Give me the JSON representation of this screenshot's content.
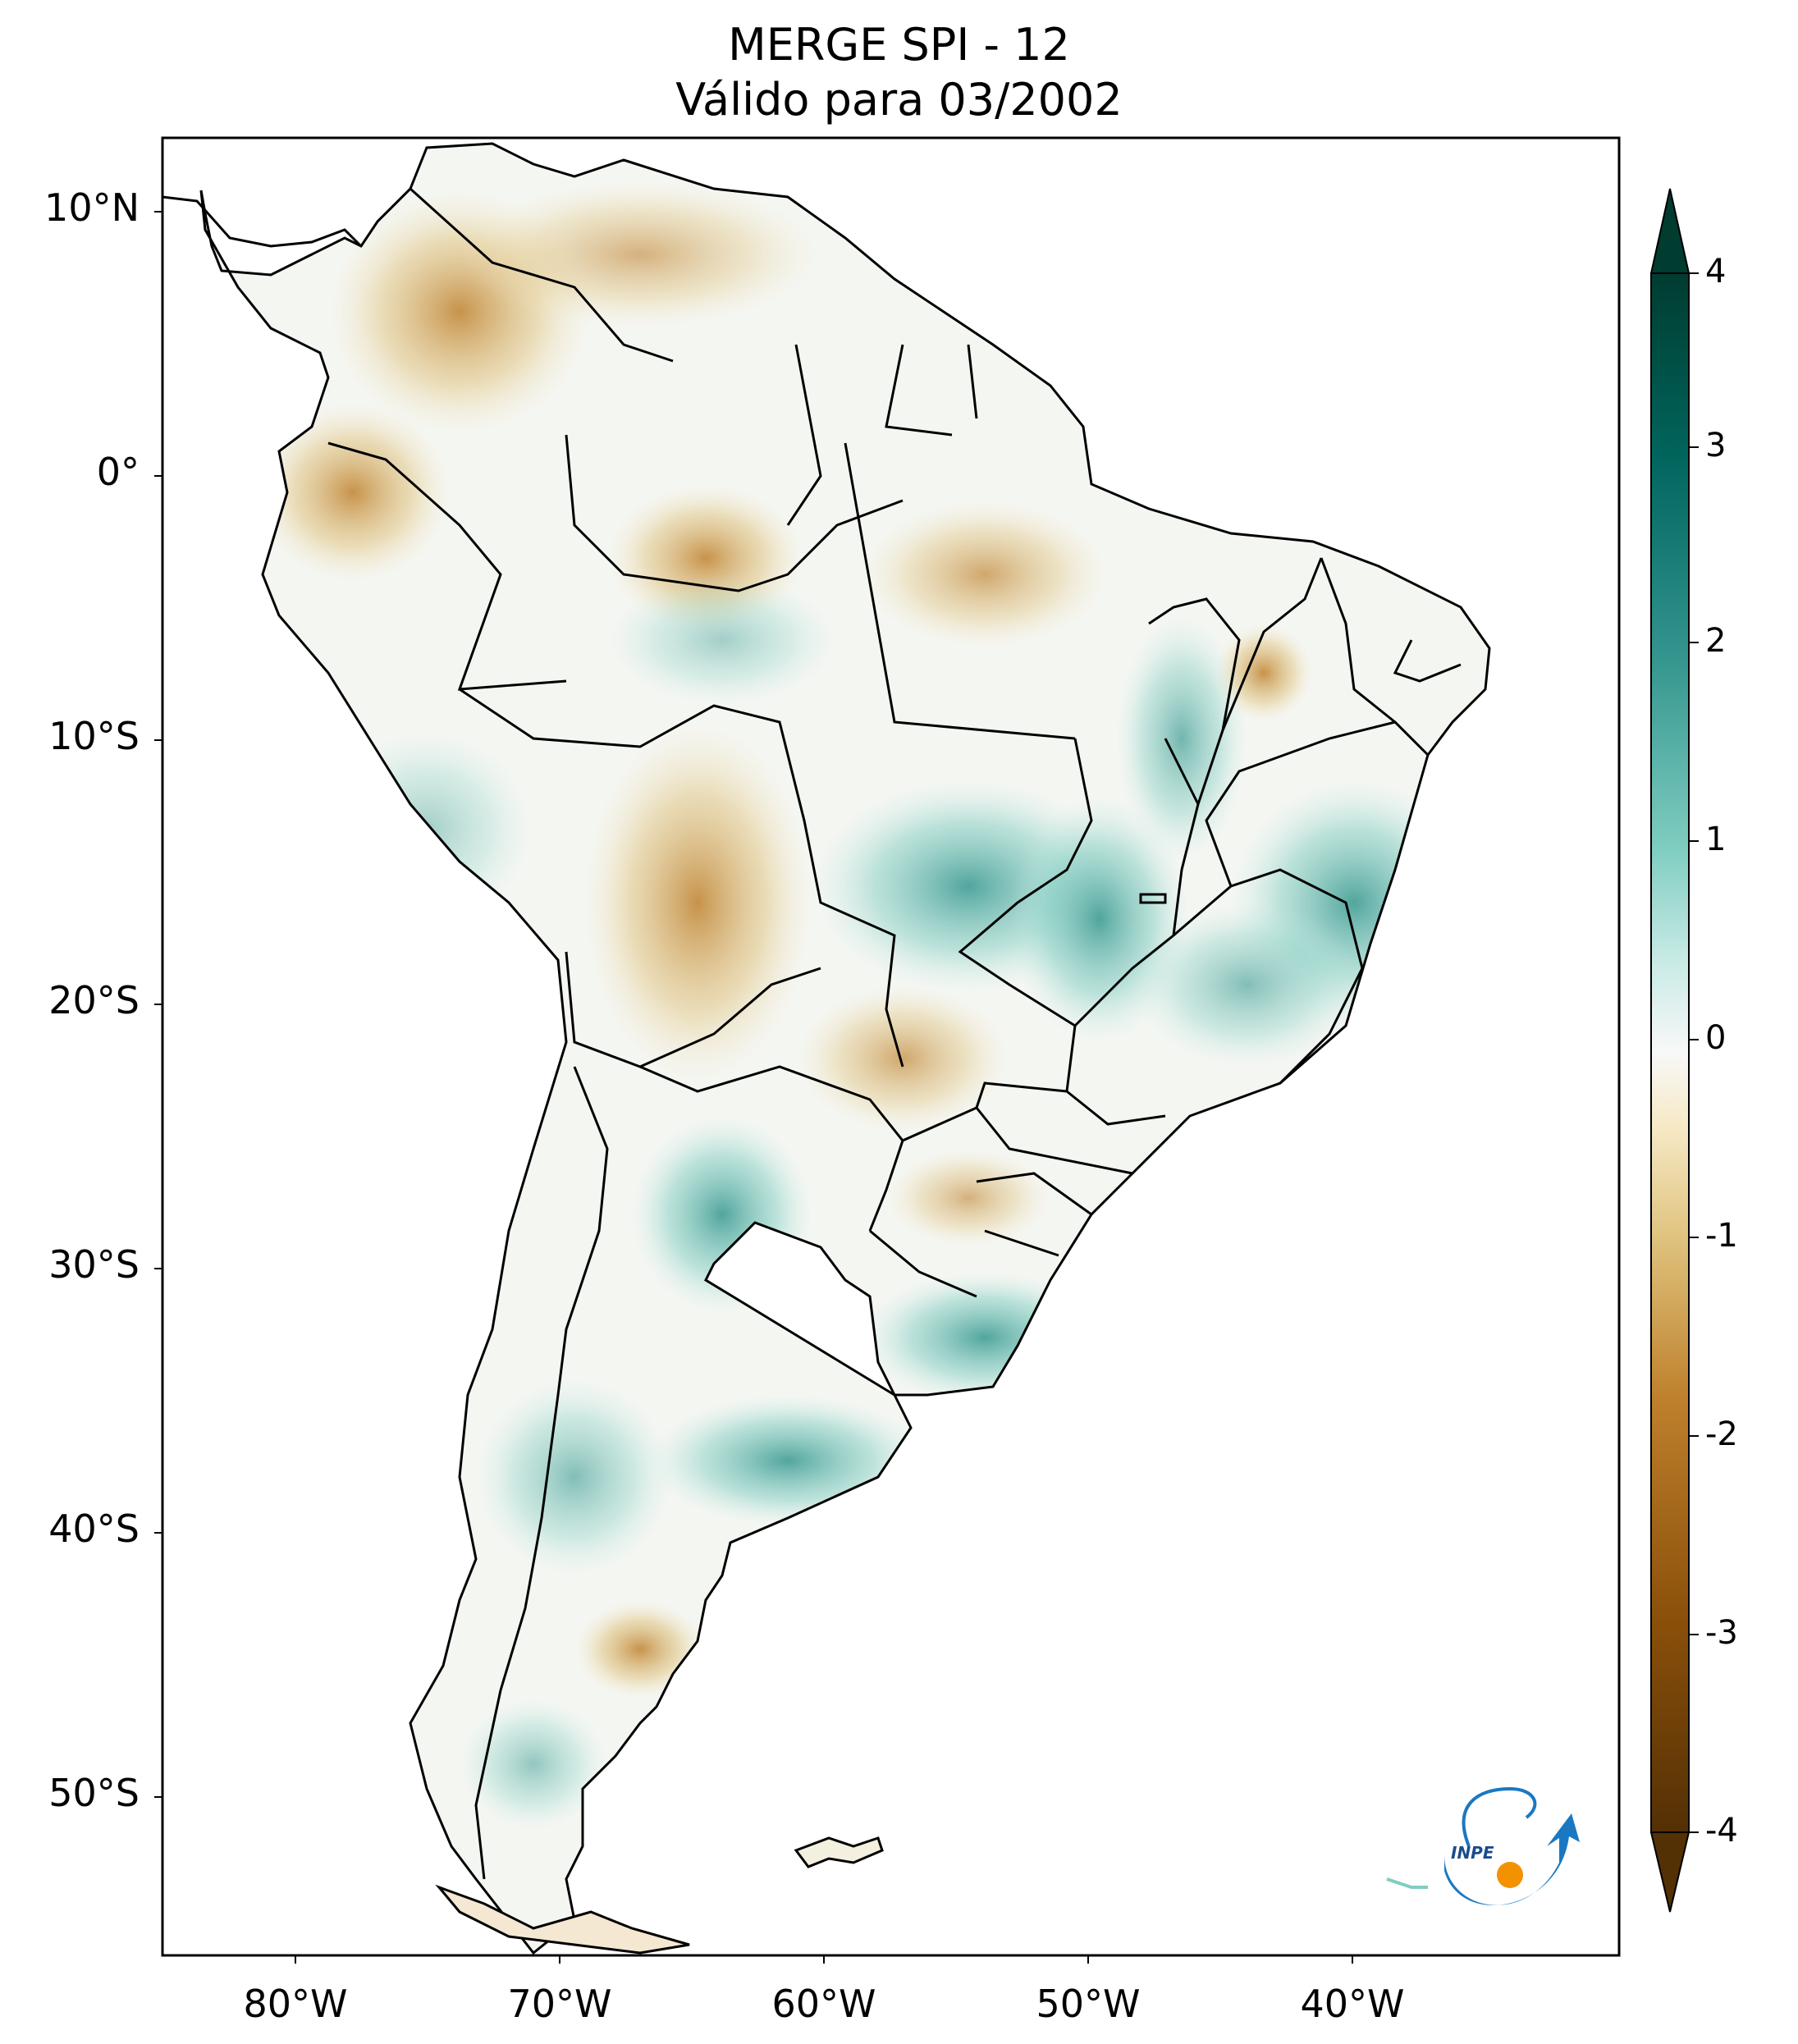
{
  "title": {
    "line1": "MERGE   SPI - 12",
    "line2": "Válido para 03/2002"
  },
  "axes": {
    "lat_ticks": [
      "10°N",
      "0°",
      "10°S",
      "20°S",
      "30°S",
      "40°S",
      "50°S"
    ],
    "lon_ticks": [
      "80°W",
      "70°W",
      "60°W",
      "50°W",
      "40°W"
    ]
  },
  "colorbar": {
    "ticks": [
      "4",
      "3",
      "2",
      "1",
      "0",
      "-1",
      "-2",
      "-3",
      "-4"
    ],
    "colors": {
      "min": "#543005",
      "dry2": "#8c510a",
      "dry1": "#dfc27d",
      "neutral": "#f5f5f5",
      "wet1": "#80cdc1",
      "wet2": "#35978f",
      "max": "#003c30"
    }
  },
  "logo": {
    "text": "INPE",
    "colors": {
      "blue": "#1a78c2",
      "orange": "#f39200"
    }
  }
}
